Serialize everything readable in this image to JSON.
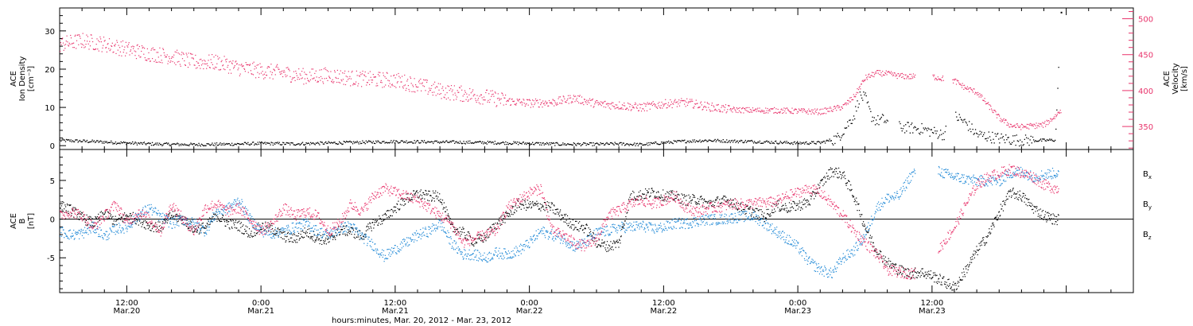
{
  "chart_data": [
    {
      "type": "scatter",
      "panel": "top",
      "ylabel": [
        "ACE",
        "Ion Density",
        "[cm⁻³]"
      ],
      "y2label": [
        "ACE",
        "Velocity",
        "[km/s]"
      ],
      "ylim": [
        -1,
        36
      ],
      "y2lim": [
        318,
        515
      ],
      "yticks": [
        0,
        10,
        20,
        30
      ],
      "y2ticks": [
        350,
        400,
        450,
        500
      ],
      "colors": {
        "density": "#000000",
        "velocity": "#e8336b"
      },
      "series": [
        {
          "axis": "left",
          "color": "#000000",
          "points": [
            [
              0,
              1.5
            ],
            [
              3,
              1.2
            ],
            [
              6,
              0.8
            ],
            [
              9,
              0.5
            ],
            [
              12,
              0.4
            ],
            [
              15,
              0.5
            ],
            [
              18,
              0.7
            ],
            [
              21,
              0.6
            ],
            [
              24,
              0.8
            ],
            [
              27,
              1.0
            ],
            [
              30,
              1.2
            ],
            [
              33,
              1.1
            ],
            [
              36,
              1.0
            ],
            [
              39,
              0.9
            ],
            [
              42,
              0.7
            ],
            [
              45,
              0.5
            ],
            [
              48,
              0.5
            ],
            [
              50,
              0.6
            ],
            [
              52,
              0.4
            ],
            [
              54,
              0.9
            ],
            [
              56,
              1.3
            ],
            [
              58,
              1.5
            ],
            [
              60,
              1.3
            ],
            [
              62,
              1.2
            ],
            [
              64,
              1.0
            ],
            [
              66,
              0.8
            ],
            [
              68,
              0.9
            ],
            [
              69.5,
              2.0
            ],
            [
              70.5,
              6.0
            ],
            [
              71,
              8.0
            ],
            [
              71.5,
              13.0
            ],
            [
              72,
              12.5
            ],
            [
              72.5,
              8.0
            ],
            [
              73,
              6.5
            ],
            [
              73.5,
              7.0
            ],
            [
              75,
              5.0
            ],
            [
              77,
              4.5
            ],
            [
              79,
              3.0
            ],
            [
              80,
              8.0
            ],
            [
              81,
              6.0
            ],
            [
              82,
              3.0
            ],
            [
              84,
              2.0
            ],
            [
              86,
              1.5
            ],
            [
              88,
              1.5
            ],
            [
              89,
              1.6
            ],
            [
              89.5,
              35.0
            ]
          ]
        },
        {
          "axis": "right",
          "color": "#e8336b",
          "points": [
            [
              0,
              465
            ],
            [
              2,
              470
            ],
            [
              4,
              465
            ],
            [
              6,
              458
            ],
            [
              8,
              452
            ],
            [
              10,
              448
            ],
            [
              12,
              440
            ],
            [
              14,
              440
            ],
            [
              16,
              432
            ],
            [
              18,
              428
            ],
            [
              20,
              425
            ],
            [
              22,
              420
            ],
            [
              24,
              422
            ],
            [
              26,
              418
            ],
            [
              28,
              416
            ],
            [
              30,
              415
            ],
            [
              32,
              408
            ],
            [
              34,
              400
            ],
            [
              36,
              396
            ],
            [
              38,
              392
            ],
            [
              40,
              386
            ],
            [
              42,
              383
            ],
            [
              44,
              384
            ],
            [
              46,
              390
            ],
            [
              48,
              382
            ],
            [
              50,
              380
            ],
            [
              52,
              377
            ],
            [
              54,
              382
            ],
            [
              56,
              384
            ],
            [
              58,
              378
            ],
            [
              60,
              374
            ],
            [
              62,
              373
            ],
            [
              64,
              373
            ],
            [
              66,
              372
            ],
            [
              68,
              371
            ],
            [
              70,
              378
            ],
            [
              71,
              392
            ],
            [
              72,
              418
            ],
            [
              73,
              425
            ],
            [
              74,
              424
            ],
            [
              75,
              421
            ],
            [
              76,
              420
            ],
            [
              78,
              420
            ],
            [
              80,
              414
            ],
            [
              81,
              404
            ],
            [
              82,
              398
            ],
            [
              83,
              380
            ],
            [
              84,
              362
            ],
            [
              85,
              352
            ],
            [
              86,
              350
            ],
            [
              88,
              353
            ],
            [
              89,
              365
            ],
            [
              89.5,
              374
            ]
          ]
        }
      ]
    },
    {
      "type": "scatter",
      "panel": "bottom",
      "ylabel": [
        "ACE",
        "B",
        "[nT]"
      ],
      "ylim": [
        -9.5,
        9
      ],
      "yticks": [
        -5,
        0,
        5
      ],
      "x": [
        0,
        1,
        2,
        3,
        4,
        5,
        6,
        7,
        8,
        9,
        10,
        11,
        12,
        13,
        14,
        15,
        16,
        17,
        18,
        19,
        20,
        21,
        22,
        23,
        24,
        25,
        26,
        27,
        28,
        29,
        30,
        31,
        32,
        33,
        34,
        35,
        36,
        37,
        38,
        39,
        40,
        41,
        42,
        43,
        44,
        45,
        46,
        47,
        48,
        49,
        50,
        51,
        52,
        53,
        54,
        55,
        56,
        57,
        58,
        59,
        60,
        61,
        62,
        63,
        64,
        65,
        66,
        67,
        68,
        69,
        70,
        71,
        72,
        73,
        74,
        75,
        76,
        77,
        78,
        79,
        80,
        81,
        82,
        83,
        84,
        85,
        86,
        87,
        88,
        89
      ],
      "series": [
        {
          "name": "Bx",
          "color": "#000000",
          "values": [
            1.8,
            1.2,
            0.2,
            -0.5,
            0.8,
            -0.3,
            0.5,
            0.0,
            -0.8,
            -1.0,
            0.6,
            0.0,
            -1.3,
            -1.0,
            0.5,
            -0.5,
            -0.8,
            -1.8,
            -0.9,
            -1.2,
            -2.2,
            -2.5,
            -1.6,
            -2.4,
            -2.8,
            -1.4,
            -1.5,
            -2.2,
            -0.5,
            0.2,
            1.5,
            2.7,
            3.3,
            3.0,
            3.0,
            -1.0,
            -1.7,
            -2.8,
            -2.3,
            -0.6,
            0.5,
            2.0,
            1.8,
            1.8,
            1.5,
            0.3,
            -0.8,
            -1.1,
            -3.0,
            -3.5,
            -3.0,
            3.0,
            3.2,
            3.5,
            3.1,
            3.0,
            2.5,
            2.6,
            2.0,
            2.4,
            2.4,
            1.4,
            1.0,
            0.4,
            1.8,
            1.5,
            1.8,
            2.3,
            4.5,
            6.3,
            5.8,
            3.0,
            -1.0,
            -4.0,
            -5.6,
            -6.5,
            -7.0,
            -6.8,
            -7.3,
            -8.0,
            -8.8,
            -6.5,
            -4.0,
            -2.0,
            1.0,
            3.5,
            3.0,
            1.5,
            0.5,
            0.0
          ]
        },
        {
          "name": "By",
          "color": "#1e88d6",
          "values": [
            -1.5,
            -2.0,
            -1.8,
            -1.0,
            -2.2,
            -1.2,
            -1.0,
            0.5,
            1.5,
            0.3,
            -0.5,
            0.0,
            -0.5,
            -1.5,
            1.0,
            1.4,
            2.5,
            0.0,
            -1.5,
            -1.8,
            -1.5,
            -1.0,
            -0.5,
            -1.5,
            -2.0,
            -1.2,
            -0.8,
            -2.2,
            -3.3,
            -4.8,
            -3.8,
            -3.0,
            -2.0,
            -1.5,
            -0.5,
            -3.0,
            -4.5,
            -4.5,
            -5.0,
            -4.3,
            -4.5,
            -4.0,
            -3.0,
            -1.5,
            -2.0,
            -2.5,
            -3.5,
            -3.0,
            -1.7,
            -1.5,
            -1.0,
            -1.0,
            -0.8,
            -1.2,
            -1.0,
            -0.5,
            -0.5,
            -0.2,
            0.0,
            0.0,
            0.2,
            0.4,
            0.4,
            -0.5,
            -1.5,
            -2.5,
            -3.6,
            -5.5,
            -6.5,
            -7.0,
            -5.0,
            -4.0,
            -2.0,
            1.5,
            2.8,
            3.0,
            5.5,
            7.0,
            6.5,
            6.0,
            5.5,
            5.2,
            5.0,
            5.0,
            5.0,
            6.0,
            6.2,
            5.5,
            5.8,
            6.0
          ]
        },
        {
          "name": "Bz",
          "color": "#e8336b",
          "values": [
            0.5,
            1.0,
            0.5,
            -1.0,
            0.5,
            2.0,
            -0.5,
            1.0,
            0.0,
            -1.5,
            2.0,
            0.0,
            -1.5,
            1.5,
            2.0,
            1.0,
            1.5,
            0.0,
            -1.5,
            -0.5,
            1.5,
            0.5,
            1.0,
            0.5,
            -1.5,
            -0.5,
            2.0,
            1.0,
            3.0,
            4.0,
            3.5,
            3.0,
            2.5,
            1.5,
            0.5,
            -0.5,
            -3.0,
            -2.5,
            -2.0,
            -1.5,
            1.5,
            2.5,
            3.5,
            4.0,
            -1.5,
            -2.0,
            -3.0,
            -3.5,
            -2.5,
            0.5,
            1.2,
            2.0,
            2.5,
            2.0,
            2.5,
            3.0,
            1.5,
            1.0,
            1.5,
            1.6,
            2.0,
            2.0,
            2.1,
            2.2,
            2.3,
            3.0,
            3.5,
            4.0,
            3.5,
            2.0,
            0.5,
            -1.5,
            -3.0,
            -4.5,
            -6.5,
            -6.8,
            -7.0,
            -7.0,
            -5.0,
            -3.0,
            -1.0,
            2.0,
            4.5,
            5.5,
            6.0,
            6.5,
            6.0,
            5.5,
            4.5,
            4.0
          ]
        }
      ]
    }
  ],
  "x_axis": {
    "xlabel": "hours:minutes, Mar. 20, 2012 - Mar. 23, 2012",
    "ticks": [
      {
        "hours": 6,
        "time": "12:00",
        "date": "Mar.20"
      },
      {
        "hours": 18,
        "time": "0:00",
        "date": "Mar.21"
      },
      {
        "hours": 30,
        "time": "12:00",
        "date": "Mar.21"
      },
      {
        "hours": 42,
        "time": "0:00",
        "date": "Mar.22"
      },
      {
        "hours": 54,
        "time": "12:00",
        "date": "Mar.22"
      },
      {
        "hours": 66,
        "time": "0:00",
        "date": "Mar.23"
      },
      {
        "hours": 78,
        "time": "12:00",
        "date": "Mar.23"
      }
    ]
  },
  "legend": {
    "placement": "right",
    "items": [
      {
        "label": "B",
        "sub": "x",
        "color": "#000000"
      },
      {
        "label": "B",
        "sub": "y",
        "color": "#1e88d6"
      },
      {
        "label": "B",
        "sub": "z",
        "color": "#e8336b"
      }
    ]
  }
}
